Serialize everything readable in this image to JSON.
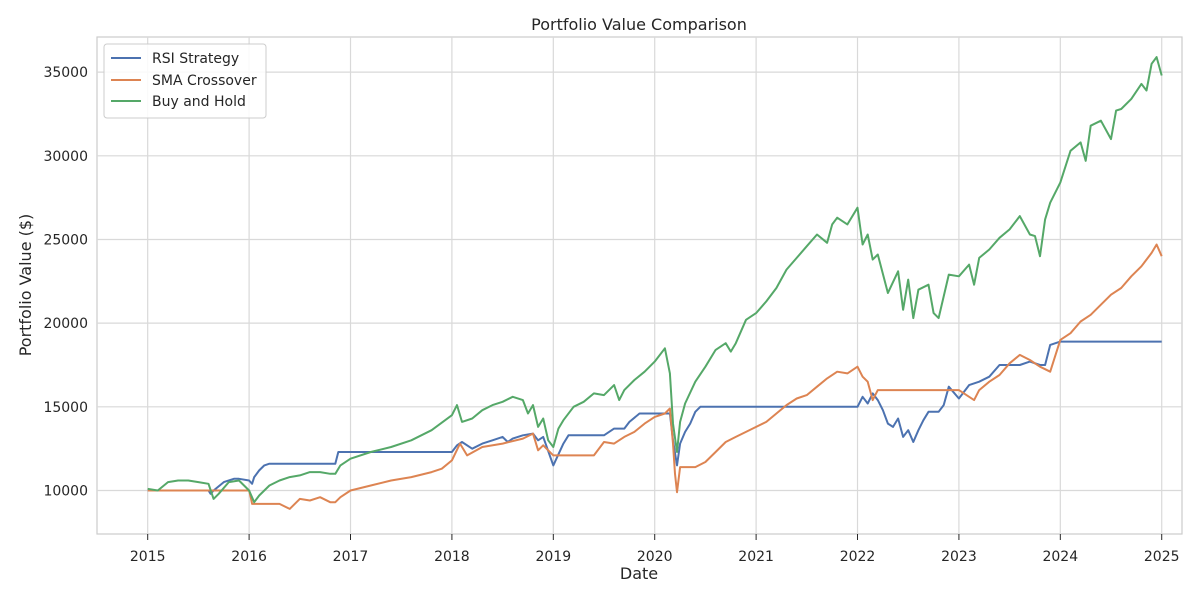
{
  "chart_data": {
    "type": "line",
    "title": "Portfolio Value Comparison",
    "xlabel": "Date",
    "ylabel": "Portfolio Value ($)",
    "xlim": [
      2014.5,
      2025.2
    ],
    "ylim": [
      7400,
      37100
    ],
    "x_ticks": [
      2015,
      2016,
      2017,
      2018,
      2019,
      2020,
      2021,
      2022,
      2023,
      2024,
      2025
    ],
    "x_tick_labels": [
      "2015",
      "2016",
      "2017",
      "2018",
      "2019",
      "2020",
      "2021",
      "2022",
      "2023",
      "2024",
      "2025"
    ],
    "y_ticks": [
      10000,
      15000,
      20000,
      25000,
      30000,
      35000
    ],
    "y_tick_labels": [
      "10000",
      "15000",
      "20000",
      "25000",
      "30000",
      "35000"
    ],
    "grid": true,
    "legend_position": "top-left",
    "series": [
      {
        "name": "RSI Strategy",
        "color": "#4c72b0",
        "x": [
          2015.0,
          2015.6,
          2015.62,
          2015.65,
          2015.75,
          2015.85,
          2015.9,
          2016.0,
          2016.03,
          2016.05,
          2016.1,
          2016.15,
          2016.2,
          2016.25,
          2016.85,
          2016.88,
          2017.0,
          2017.05,
          2017.15,
          2017.5,
          2018.0,
          2018.05,
          2018.1,
          2018.2,
          2018.3,
          2018.4,
          2018.5,
          2018.55,
          2018.6,
          2018.7,
          2018.8,
          2018.85,
          2018.9,
          2019.0,
          2019.1,
          2019.15,
          2019.5,
          2019.6,
          2019.7,
          2019.75,
          2019.85,
          2020.0,
          2020.1,
          2020.15,
          2020.18,
          2020.22,
          2020.25,
          2020.3,
          2020.35,
          2020.4,
          2020.45,
          2021.0,
          2021.5,
          2022.0,
          2022.05,
          2022.1,
          2022.15,
          2022.2,
          2022.25,
          2022.3,
          2022.35,
          2022.4,
          2022.45,
          2022.5,
          2022.55,
          2022.6,
          2022.65,
          2022.7,
          2022.8,
          2022.85,
          2022.9,
          2023.0,
          2023.1,
          2023.2,
          2023.3,
          2023.4,
          2023.5,
          2023.6,
          2023.7,
          2023.8,
          2023.85,
          2023.9,
          2024.0,
          2024.5,
          2025.0
        ],
        "y": [
          10000,
          10000,
          9800,
          10000,
          10500,
          10700,
          10700,
          10600,
          10400,
          10800,
          11200,
          11500,
          11600,
          11600,
          11600,
          12300,
          12300,
          12300,
          12300,
          12300,
          12300,
          12700,
          12900,
          12500,
          12800,
          13000,
          13200,
          12900,
          13100,
          13300,
          13400,
          13000,
          13200,
          11500,
          12800,
          13300,
          13300,
          13700,
          13700,
          14100,
          14600,
          14600,
          14600,
          14600,
          13000,
          11500,
          12800,
          13500,
          14000,
          14700,
          15000,
          15000,
          15000,
          15000,
          15600,
          15200,
          15800,
          15400,
          14800,
          14000,
          13800,
          14300,
          13200,
          13600,
          12900,
          13600,
          14200,
          14700,
          14700,
          15100,
          16200,
          15500,
          16300,
          16500,
          16800,
          17500,
          17500,
          17500,
          17700,
          17500,
          17500,
          18700,
          18900,
          18900,
          18900
        ]
      },
      {
        "name": "SMA Crossover",
        "color": "#dd8452",
        "x": [
          2015.0,
          2015.5,
          2016.0,
          2016.02,
          2016.03,
          2016.2,
          2016.3,
          2016.4,
          2016.5,
          2016.6,
          2016.7,
          2016.8,
          2016.85,
          2016.9,
          2017.0,
          2017.2,
          2017.4,
          2017.6,
          2017.8,
          2017.9,
          2018.0,
          2018.08,
          2018.15,
          2018.3,
          2018.5,
          2018.7,
          2018.8,
          2018.85,
          2018.9,
          2019.0,
          2019.2,
          2019.4,
          2019.5,
          2019.6,
          2019.7,
          2019.8,
          2019.9,
          2020.0,
          2020.1,
          2020.15,
          2020.18,
          2020.2,
          2020.22,
          2020.25,
          2020.3,
          2020.4,
          2020.5,
          2020.6,
          2020.7,
          2020.8,
          2020.9,
          2021.0,
          2021.1,
          2021.2,
          2021.3,
          2021.4,
          2021.5,
          2021.6,
          2021.7,
          2021.8,
          2021.9,
          2022.0,
          2022.05,
          2022.1,
          2022.15,
          2022.2,
          2022.3,
          2022.5,
          2022.7,
          2022.9,
          2023.0,
          2023.1,
          2023.15,
          2023.2,
          2023.3,
          2023.4,
          2023.5,
          2023.6,
          2023.7,
          2023.8,
          2023.9,
          2024.0,
          2024.1,
          2024.2,
          2024.3,
          2024.4,
          2024.5,
          2024.6,
          2024.7,
          2024.8,
          2024.9,
          2024.95,
          2025.0
        ],
        "y": [
          10000,
          10000,
          10000,
          9500,
          9200,
          9200,
          9200,
          8900,
          9500,
          9400,
          9600,
          9300,
          9300,
          9600,
          10000,
          10300,
          10600,
          10800,
          11100,
          11300,
          11800,
          12800,
          12100,
          12600,
          12800,
          13100,
          13400,
          12400,
          12700,
          12100,
          12100,
          12100,
          12900,
          12800,
          13200,
          13500,
          14000,
          14400,
          14600,
          14900,
          12800,
          11000,
          9900,
          11400,
          11400,
          11400,
          11700,
          12300,
          12900,
          13200,
          13500,
          13800,
          14100,
          14600,
          15100,
          15500,
          15700,
          16200,
          16700,
          17100,
          17000,
          17400,
          16800,
          16500,
          15400,
          16000,
          16000,
          16000,
          16000,
          16000,
          16000,
          15600,
          15400,
          16000,
          16500,
          16900,
          17600,
          18100,
          17800,
          17400,
          17100,
          19000,
          19400,
          20100,
          20500,
          21100,
          21700,
          22100,
          22800,
          23400,
          24200,
          24700,
          24000
        ]
      },
      {
        "name": "Buy and Hold",
        "color": "#55a868",
        "x": [
          2015.0,
          2015.1,
          2015.2,
          2015.3,
          2015.4,
          2015.5,
          2015.6,
          2015.65,
          2015.7,
          2015.8,
          2015.9,
          2016.0,
          2016.05,
          2016.1,
          2016.2,
          2016.3,
          2016.4,
          2016.5,
          2016.6,
          2016.7,
          2016.8,
          2016.85,
          2016.9,
          2017.0,
          2017.2,
          2017.4,
          2017.6,
          2017.8,
          2018.0,
          2018.05,
          2018.1,
          2018.2,
          2018.3,
          2018.4,
          2018.5,
          2018.6,
          2018.7,
          2018.75,
          2018.8,
          2018.85,
          2018.9,
          2018.95,
          2019.0,
          2019.05,
          2019.1,
          2019.2,
          2019.3,
          2019.4,
          2019.5,
          2019.6,
          2019.65,
          2019.7,
          2019.8,
          2019.9,
          2020.0,
          2020.1,
          2020.15,
          2020.18,
          2020.22,
          2020.25,
          2020.3,
          2020.4,
          2020.5,
          2020.6,
          2020.7,
          2020.75,
          2020.8,
          2020.9,
          2021.0,
          2021.1,
          2021.2,
          2021.3,
          2021.4,
          2021.5,
          2021.6,
          2021.7,
          2021.75,
          2021.8,
          2021.9,
          2022.0,
          2022.05,
          2022.1,
          2022.15,
          2022.2,
          2022.3,
          2022.4,
          2022.45,
          2022.5,
          2022.55,
          2022.6,
          2022.7,
          2022.75,
          2022.8,
          2022.85,
          2022.9,
          2023.0,
          2023.1,
          2023.15,
          2023.2,
          2023.3,
          2023.4,
          2023.5,
          2023.6,
          2023.7,
          2023.75,
          2023.8,
          2023.85,
          2023.9,
          2024.0,
          2024.1,
          2024.2,
          2024.25,
          2024.3,
          2024.4,
          2024.5,
          2024.55,
          2024.6,
          2024.7,
          2024.8,
          2024.85,
          2024.9,
          2024.95,
          2025.0
        ],
        "y": [
          10100,
          10000,
          10500,
          10600,
          10600,
          10500,
          10400,
          9500,
          9800,
          10500,
          10600,
          10000,
          9300,
          9700,
          10300,
          10600,
          10800,
          10900,
          11100,
          11100,
          11000,
          11000,
          11500,
          11900,
          12300,
          12600,
          13000,
          13600,
          14500,
          15100,
          14100,
          14300,
          14800,
          15100,
          15300,
          15600,
          15400,
          14600,
          15100,
          13800,
          14300,
          13000,
          12600,
          13700,
          14200,
          15000,
          15300,
          15800,
          15700,
          16300,
          15400,
          16000,
          16600,
          17100,
          17700,
          18500,
          17000,
          14000,
          12300,
          14100,
          15200,
          16500,
          17400,
          18400,
          18800,
          18300,
          18800,
          20200,
          20600,
          21300,
          22100,
          23200,
          23900,
          24600,
          25300,
          24800,
          25900,
          26300,
          25900,
          26900,
          24700,
          25300,
          23800,
          24100,
          21800,
          23100,
          20800,
          22600,
          20300,
          22000,
          22300,
          20600,
          20300,
          21600,
          22900,
          22800,
          23500,
          22300,
          23900,
          24400,
          25100,
          25600,
          26400,
          25300,
          25200,
          24000,
          26200,
          27200,
          28400,
          30300,
          30800,
          29700,
          31800,
          32100,
          31000,
          32700,
          32800,
          33400,
          34300,
          33900,
          35500,
          35900,
          34800
        ]
      }
    ]
  }
}
